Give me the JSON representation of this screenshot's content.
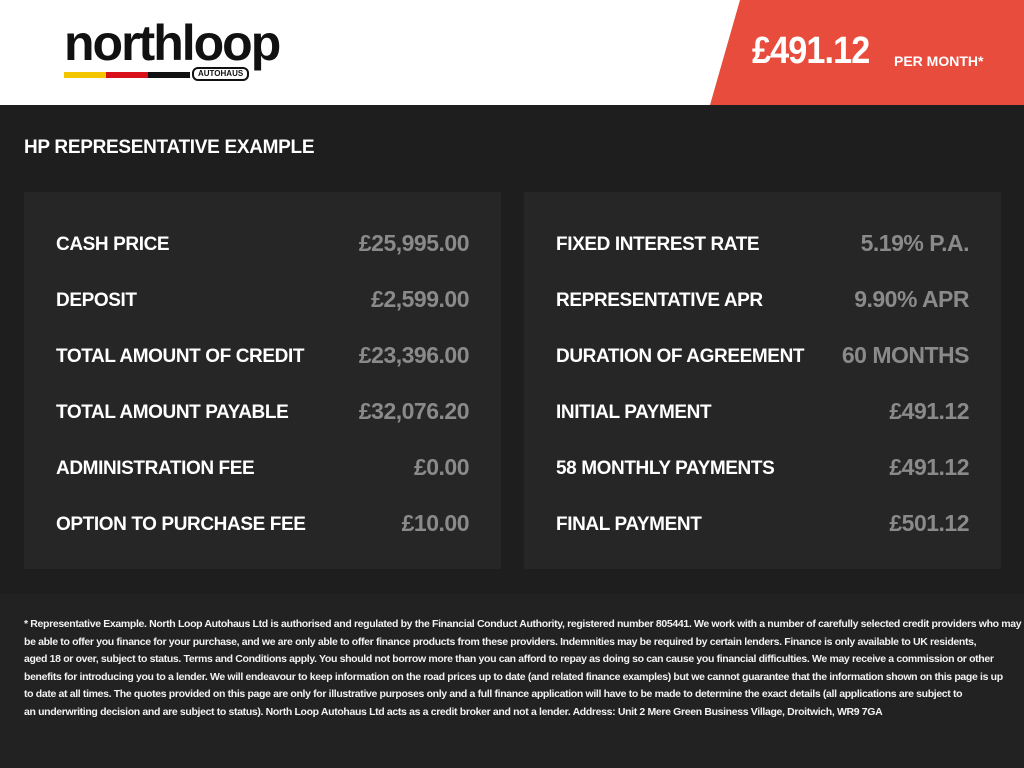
{
  "brand": {
    "name": "northloop",
    "sub": "AUTOHAUS",
    "stripe_colors": [
      "#f2c500",
      "#d8101a",
      "#111111"
    ]
  },
  "header": {
    "monthly_price": "£491.12",
    "per_month": "PER MONTH*",
    "accent": "#e84c3d"
  },
  "title": "HP REPRESENTATIVE EXAMPLE",
  "left": [
    {
      "label": "CASH PRICE",
      "value": "£25,995.00"
    },
    {
      "label": "DEPOSIT",
      "value": "£2,599.00"
    },
    {
      "label": "TOTAL AMOUNT OF CREDIT",
      "value": "£23,396.00"
    },
    {
      "label": "TOTAL AMOUNT PAYABLE",
      "value": "£32,076.20"
    },
    {
      "label": "ADMINISTRATION FEE",
      "value": "£0.00"
    },
    {
      "label": "OPTION TO PURCHASE FEE",
      "value": "£10.00"
    }
  ],
  "right": [
    {
      "label": "FIXED INTEREST RATE",
      "value": "5.19% P.A."
    },
    {
      "label": "REPRESENTATIVE APR",
      "value": "9.90% APR"
    },
    {
      "label": "DURATION OF AGREEMENT",
      "value": "60 MONTHS"
    },
    {
      "label": "INITIAL PAYMENT",
      "value": "£491.12"
    },
    {
      "label": "58 MONTHLY PAYMENTS",
      "value": "£491.12"
    },
    {
      "label": "FINAL PAYMENT",
      "value": "£501.12"
    }
  ],
  "disclaimer": [
    "* Representative Example. North Loop Autohaus Ltd is authorised and regulated by the Financial Conduct Authority, registered number 805441. We work with a number of carefully selected credit providers who may",
    "be able to offer you finance for your purchase, and we are only able to offer finance products from these providers. Indemnities may be required by certain lenders. Finance is only available to UK residents,",
    "aged 18 or over, subject to status. Terms and Conditions apply. You should not borrow more than you can afford to repay as doing so can cause you financial difficulties. We may receive a commission or other",
    "benefits for introducing you to a lender. We will endeavour to keep information on the road prices up to date (and related finance examples) but we cannot guarantee that the information shown on this page is up",
    "to date at all times. The quotes provided on this page are only for illustrative purposes only and a full finance application will have to be made to determine the exact details (all applications are subject to",
    "an underwriting decision and are subject to status). North Loop Autohaus Ltd acts as a credit broker and not a lender. Address: Unit 2 Mere Green Business Village, Droitwich, WR9 7GA"
  ]
}
